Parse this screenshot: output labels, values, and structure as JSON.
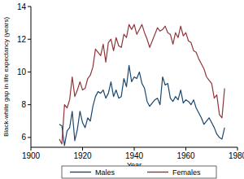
{
  "chart_data": {
    "type": "line",
    "x_label": "Year",
    "y_label": "Black-white gap in life expectancy (years)",
    "x": [
      1911,
      1912,
      1913,
      1914,
      1915,
      1916,
      1917,
      1918,
      1919,
      1920,
      1921,
      1922,
      1923,
      1924,
      1925,
      1926,
      1927,
      1928,
      1929,
      1930,
      1931,
      1932,
      1933,
      1934,
      1935,
      1936,
      1937,
      1938,
      1939,
      1940,
      1941,
      1942,
      1943,
      1944,
      1945,
      1946,
      1947,
      1948,
      1949,
      1950,
      1951,
      1952,
      1953,
      1954,
      1955,
      1956,
      1957,
      1958,
      1959,
      1960,
      1961,
      1962,
      1963,
      1964,
      1965,
      1966,
      1967,
      1968,
      1969,
      1970,
      1971,
      1972,
      1973,
      1974,
      1975
    ],
    "series": [
      {
        "name": "Males",
        "color": "#1a476f",
        "values": [
          6.8,
          6.7,
          5.5,
          6.4,
          6.6,
          7.6,
          5.8,
          6.5,
          7.6,
          6.9,
          6.6,
          7.2,
          7.0,
          7.9,
          8.5,
          8.8,
          8.7,
          8.9,
          8.4,
          8.7,
          9.4,
          8.5,
          8.9,
          8.4,
          8.5,
          9.6,
          9.1,
          10.4,
          9.4,
          9.7,
          9.6,
          10.0,
          9.3,
          9.0,
          8.2,
          7.9,
          8.1,
          8.3,
          8.4,
          8.0,
          9.7,
          9.2,
          9.3,
          8.4,
          8.2,
          8.5,
          8.3,
          8.9,
          8.1,
          8.3,
          8.2,
          8.0,
          8.3,
          7.8,
          7.5,
          7.2,
          6.8,
          7.0,
          7.2,
          6.9,
          6.6,
          6.2,
          6.0,
          5.9,
          6.6
        ]
      },
      {
        "name": "Females",
        "color": "#90353b",
        "values": [
          5.9,
          5.6,
          8.0,
          7.8,
          8.3,
          9.7,
          8.5,
          8.9,
          9.4,
          8.9,
          9.0,
          9.6,
          9.8,
          10.3,
          11.4,
          11.2,
          11.0,
          11.7,
          10.6,
          11.8,
          12.0,
          11.3,
          12.1,
          11.6,
          11.5,
          12.3,
          12.1,
          12.9,
          12.6,
          12.9,
          12.3,
          12.6,
          12.9,
          12.4,
          12.0,
          11.5,
          11.9,
          12.3,
          12.7,
          12.5,
          12.6,
          12.8,
          12.4,
          12.3,
          11.7,
          12.4,
          12.1,
          12.8,
          12.2,
          12.4,
          11.9,
          11.8,
          11.3,
          11.2,
          10.8,
          10.5,
          10.2,
          9.7,
          9.5,
          9.3,
          8.4,
          8.6,
          7.4,
          7.2,
          9.0
        ]
      }
    ],
    "xlim": [
      1900,
      1980
    ],
    "xticks": [
      1900,
      1920,
      1940,
      1960,
      1980
    ],
    "ylim": [
      5.4,
      14
    ],
    "yticks": [
      6,
      8,
      10,
      12,
      14
    ],
    "grid": false,
    "legend": "bottom"
  }
}
